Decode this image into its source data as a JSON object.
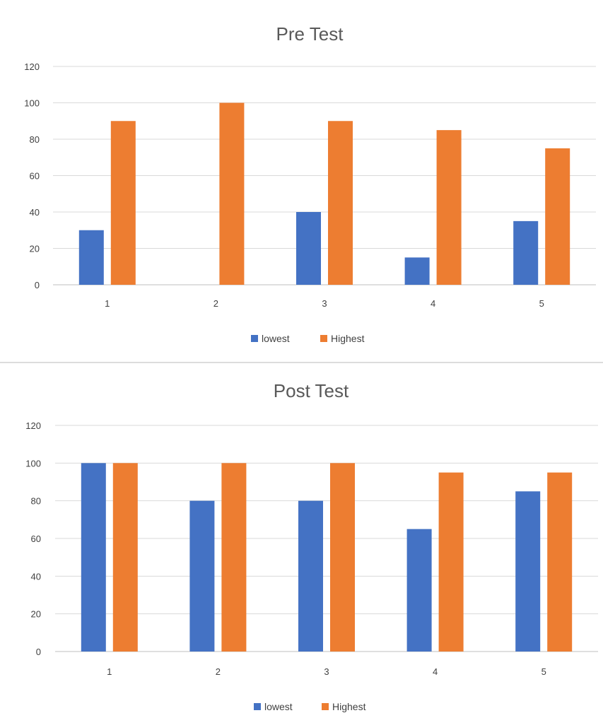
{
  "chart_data": [
    {
      "type": "bar",
      "title": "Pre Test",
      "categories": [
        "1",
        "2",
        "3",
        "4",
        "5"
      ],
      "series": [
        {
          "name": "lowest",
          "values": [
            30,
            0,
            40,
            15,
            35
          ],
          "color": "#4472c4"
        },
        {
          "name": "Highest",
          "values": [
            90,
            100,
            90,
            85,
            75
          ],
          "color": "#ed7d31"
        }
      ],
      "ylim": [
        0,
        120
      ],
      "yticks": [
        "0",
        "20",
        "40",
        "60",
        "80",
        "100",
        "120"
      ],
      "grid": true,
      "legend": "bottom"
    },
    {
      "type": "bar",
      "title": "Post Test",
      "categories": [
        "1",
        "2",
        "3",
        "4",
        "5"
      ],
      "series": [
        {
          "name": "lowest",
          "values": [
            100,
            80,
            80,
            65,
            85
          ],
          "color": "#4472c4"
        },
        {
          "name": "Highest",
          "values": [
            100,
            100,
            100,
            95,
            95
          ],
          "color": "#ed7d31"
        }
      ],
      "ylim": [
        0,
        120
      ],
      "yticks": [
        "0",
        "20",
        "40",
        "60",
        "80",
        "100",
        "120"
      ],
      "grid": true,
      "legend": "bottom"
    }
  ]
}
